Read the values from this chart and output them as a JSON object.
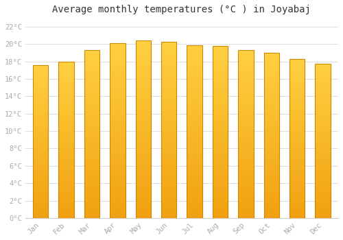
{
  "title": "Average monthly temperatures (°C ) in Joyabaj",
  "months": [
    "Jan",
    "Feb",
    "Mar",
    "Apr",
    "May",
    "Jun",
    "Jul",
    "Aug",
    "Sep",
    "Oct",
    "Nov",
    "Dec"
  ],
  "values": [
    17.6,
    18.0,
    19.3,
    20.1,
    20.4,
    20.3,
    19.9,
    19.8,
    19.3,
    19.0,
    18.3,
    17.7
  ],
  "bar_color_bottom": "#F0A010",
  "bar_color_top": "#FFD040",
  "bar_edge_color": "#CC8800",
  "background_color": "#FFFFFF",
  "grid_color": "#DDDDDD",
  "ytick_labels": [
    "0°C",
    "2°C",
    "4°C",
    "6°C",
    "8°C",
    "10°C",
    "12°C",
    "14°C",
    "16°C",
    "18°C",
    "20°C",
    "22°C"
  ],
  "ytick_values": [
    0,
    2,
    4,
    6,
    8,
    10,
    12,
    14,
    16,
    18,
    20,
    22
  ],
  "ylim": [
    0,
    23
  ],
  "title_fontsize": 10,
  "tick_fontsize": 7.5,
  "tick_color": "#AAAAAA",
  "font_family": "monospace",
  "bar_width": 0.6
}
